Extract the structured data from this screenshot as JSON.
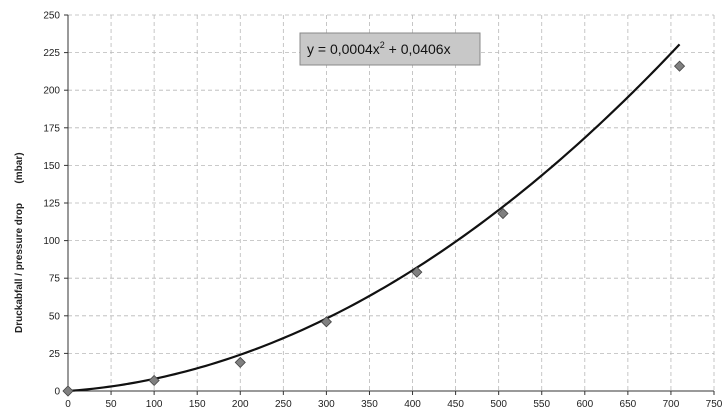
{
  "chart_data": {
    "type": "scatter",
    "title": "",
    "xlabel": "",
    "ylabel": "Druckabfall / pressure drop",
    "ylabel_unit": "(mbar)",
    "xlim": [
      0,
      750
    ],
    "ylim": [
      0,
      250
    ],
    "x_ticks": [
      0,
      50,
      100,
      150,
      200,
      250,
      300,
      350,
      400,
      450,
      500,
      550,
      600,
      650,
      700,
      750
    ],
    "y_ticks": [
      0,
      25,
      50,
      75,
      100,
      125,
      150,
      175,
      200,
      225,
      250
    ],
    "grid": true,
    "series": [
      {
        "points": [
          {
            "x": 0,
            "y": 0
          },
          {
            "x": 100,
            "y": 7
          },
          {
            "x": 200,
            "y": 19
          },
          {
            "x": 300,
            "y": 46
          },
          {
            "x": 405,
            "y": 79
          },
          {
            "x": 505,
            "y": 118
          },
          {
            "x": 710,
            "y": 216
          }
        ],
        "marker": "diamond",
        "color": "#808080"
      }
    ],
    "trendline": {
      "a": 0.0004,
      "b": 0.0406,
      "x_range": [
        0,
        710
      ],
      "color": "#111111"
    },
    "annotation": {
      "text_main": "y = 0,0004x",
      "text_sup": "2",
      "text_rest": " + 0,0406x",
      "background": "#c8c8c8"
    }
  }
}
